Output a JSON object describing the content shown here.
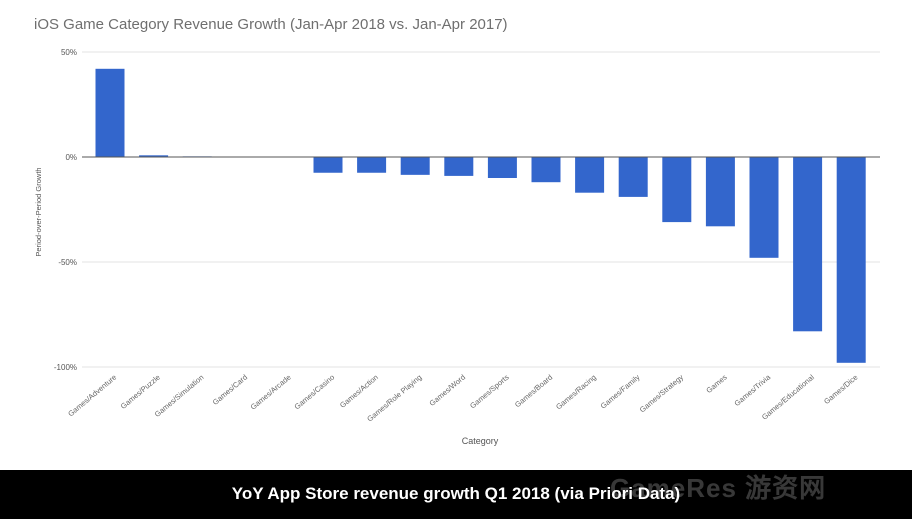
{
  "chart_data": {
    "type": "bar",
    "title": "iOS Game Category Revenue Growth (Jan-Apr 2018 vs. Jan-Apr 2017)",
    "xlabel": "Category",
    "ylabel": "Period-over-Period Growth",
    "ylim": [
      -100,
      50
    ],
    "yticks": [
      50,
      0,
      -50,
      -100
    ],
    "ytick_labels": [
      "50%",
      "0%",
      "-50%",
      "-100%"
    ],
    "grid": true,
    "categories": [
      "Games/Adventure",
      "Games/Puzzle",
      "Games/Simulation",
      "Games/Card",
      "Games/Arcade",
      "Games/Casino",
      "Games/Action",
      "Games/Role Playing",
      "Games/Word",
      "Games/Sports",
      "Games/Board",
      "Games/Racing",
      "Games/Family",
      "Games/Strategy",
      "Games",
      "Games/Trivia",
      "Games/Educational",
      "Games/Dice"
    ],
    "values": [
      42,
      0.8,
      0.3,
      0.2,
      0.2,
      -7.5,
      -7.5,
      -8.5,
      -9,
      -10,
      -12,
      -17,
      -19,
      -31,
      -33,
      -48,
      -83,
      -98
    ],
    "bar_color": "#3366cc"
  },
  "caption": "YoY App Store revenue growth Q1 2018 (via Priori Data)",
  "watermark": "GameRes 游资网"
}
